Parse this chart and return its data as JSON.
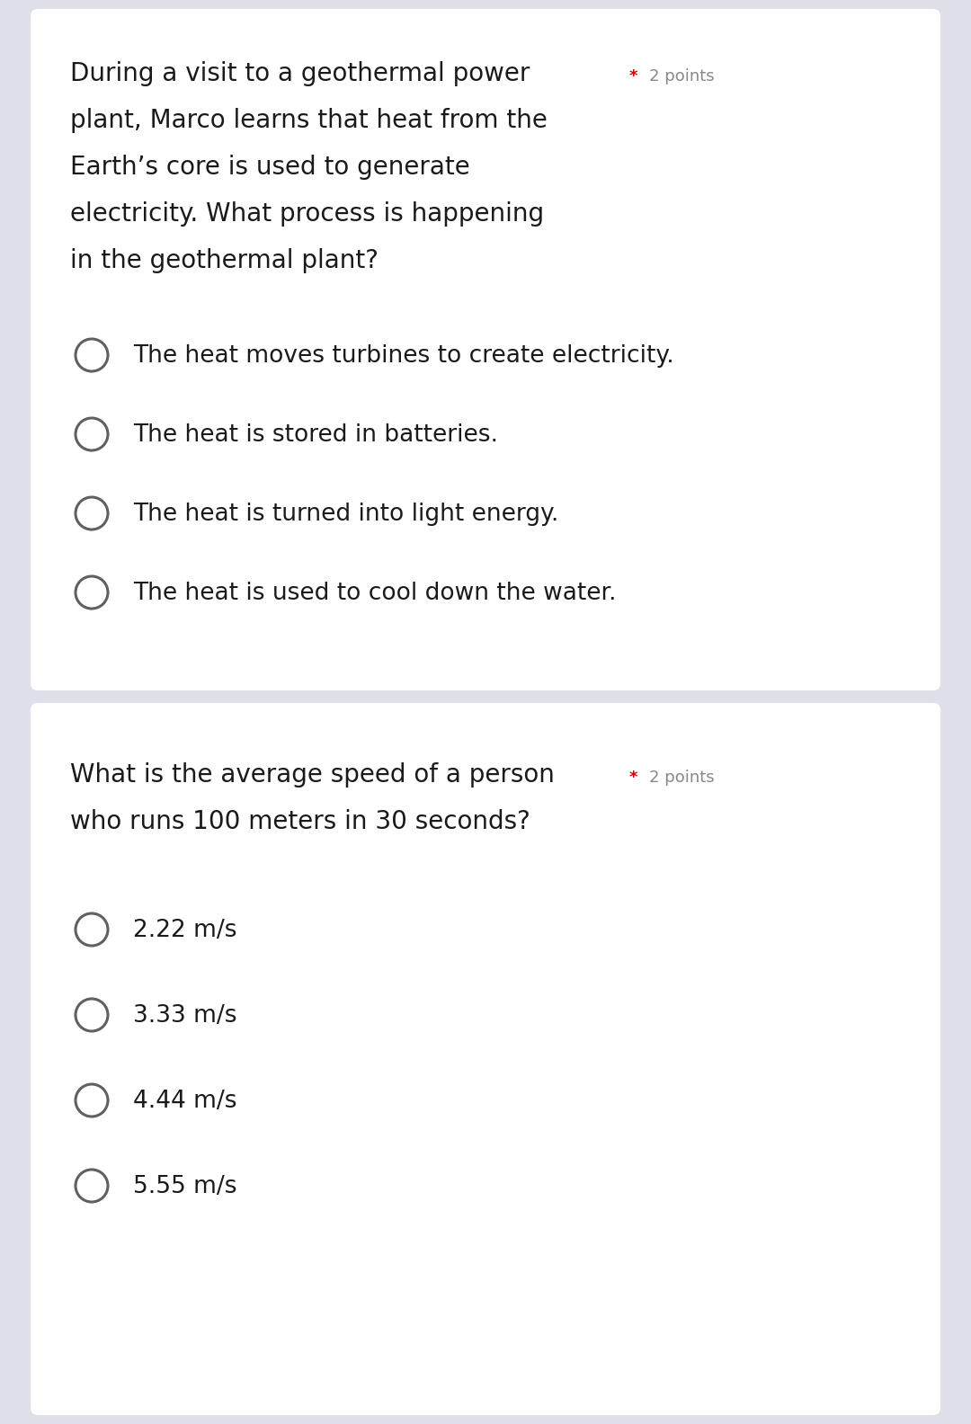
{
  "background_color": "#e0e0eb",
  "card_color": "#ffffff",
  "question1": {
    "lines": [
      "During a visit to a geothermal power",
      "plant, Marco learns that heat from the",
      "Earth’s core is used to generate",
      "electricity. What process is happening",
      "in the geothermal plant?"
    ],
    "options": [
      "The heat moves turbines to create electricity.",
      "The heat is stored in batteries.",
      "The heat is turned into light energy.",
      "The heat is used to cool down the water."
    ]
  },
  "question2": {
    "lines": [
      "What is the average speed of a person",
      "who runs 100 meters in 30 seconds?"
    ],
    "options": [
      "2.22 m/s",
      "3.33 m/s",
      "4.44 m/s",
      "5.55 m/s"
    ]
  },
  "question_font_size": 20,
  "option_font_size": 19,
  "points_font_size": 13,
  "star_color": "#cc0000",
  "points_color": "#888888",
  "text_color": "#1a1a1a",
  "circle_edge_color": "#606060",
  "circle_linewidth": 2.2
}
